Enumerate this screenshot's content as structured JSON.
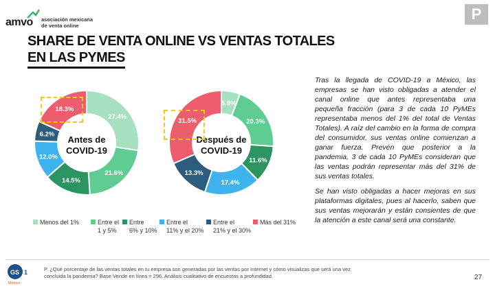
{
  "header": {
    "logo_word": "amvo",
    "logo_line1": "asociación mexicana",
    "logo_line2": "de venta online",
    "badge": "P",
    "title_line1": "SHARE DE VENTA ONLINE VS VENTAS TOTALES",
    "title_line2": "EN LAS PYMES"
  },
  "colors": {
    "menos_1": "#a8e0c2",
    "entre_1_5": "#5fcd92",
    "entre_6_10": "#2b9460",
    "entre_11_20": "#3fb3ee",
    "entre_21_30": "#2c5d7c",
    "mas_31": "#ec5d6e",
    "highlight": "#f2c81b"
  },
  "chart_data": [
    {
      "type": "pie",
      "center_label": "Antes de\nCOVID-19",
      "categories": [
        "Menos del 1%",
        "Entre el 1 y 5%",
        "Entre 6% y 10%",
        "Entre el 11% y el 20%",
        "Entre el 21% y el 30%",
        "Más del 31%"
      ],
      "values": [
        27.4,
        21.6,
        14.5,
        12.0,
        6.2,
        18.3
      ],
      "labels": [
        "27.4%",
        "21.6%",
        "14.5%",
        "12.0%",
        "6.2%",
        "18.3%"
      ],
      "highlighted": "18.3%"
    },
    {
      "type": "pie",
      "center_label": "Después de\nCOVID-19",
      "categories": [
        "Menos del 1%",
        "Entre el 1 y 5%",
        "Entre 6% y 10%",
        "Entre el 11% y el 20%",
        "Entre el 21% y el 30%",
        "Más del 31%"
      ],
      "values": [
        5.8,
        20.3,
        11.6,
        17.4,
        13.3,
        31.5
      ],
      "labels": [
        "5.8%",
        "20.3%",
        "11.6%",
        "17.4%",
        "13.3%",
        "31.5%"
      ],
      "highlighted": "31.5%"
    }
  ],
  "legend": [
    {
      "line1": "Menos del 1%",
      "line2": "",
      "color": "#a8e0c2"
    },
    {
      "line1": "Entre el",
      "line2": "1 y 5%",
      "color": "#5fcd92"
    },
    {
      "line1": "Entre",
      "line2": "6% y 10%",
      "color": "#2b9460"
    },
    {
      "line1": "Entre el",
      "line2": "11% y el 20%",
      "color": "#3fb3ee"
    },
    {
      "line1": "Entre el",
      "line2": "21% y el 30%",
      "color": "#2c5d7c"
    },
    {
      "line1": "Más del 31%",
      "line2": "",
      "color": "#ec5d6e"
    }
  ],
  "body": {
    "p1": "Tras la llegada de COVID-19 a México, las empresas se han visto obligadas a atender el canal online que antes representaba una pequeña fracción (para 3 de cada 10 PyMEs representaba menos del 1% del total de Ventas Totales). A raíz del cambio en la forma de compra del consumidor, sus ventas online comienzan a ganar fuerza. Prevén que posterior a la pandemia, 3 de cada 10 PyMEs consideran que las ventas podrán representar más del 31% de sus ventas totales.",
    "p2": "Se han visto obligadas a hacer mejoras en sus plataformas digitales, pues al hacerlo, saben que sus ventas mejorarán y están consientes de que la atención a este canal será una constante."
  },
  "footer": {
    "gs1_text": "GS1",
    "gs1_sub": "México",
    "note_line1": "P. ¿Qué porcentaje de las ventas totales en tu empresa son generadas por las ventas por Internet y cómo visualizas que será una vez",
    "note_line2": "concluida la pandemia? Base Vende en línea = 296. Análisis cualitativo de encuestas a profundidad.",
    "page": "27"
  }
}
